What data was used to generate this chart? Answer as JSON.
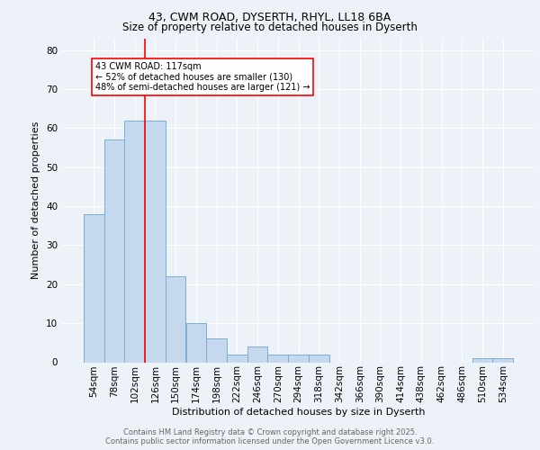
{
  "title_line1": "43, CWM ROAD, DYSERTH, RHYL, LL18 6BA",
  "title_line2": "Size of property relative to detached houses in Dyserth",
  "xlabel": "Distribution of detached houses by size in Dyserth",
  "ylabel": "Number of detached properties",
  "categories": [
    "54sqm",
    "78sqm",
    "102sqm",
    "126sqm",
    "150sqm",
    "174sqm",
    "198sqm",
    "222sqm",
    "246sqm",
    "270sqm",
    "294sqm",
    "318sqm",
    "342sqm",
    "366sqm",
    "390sqm",
    "414sqm",
    "438sqm",
    "462sqm",
    "486sqm",
    "510sqm",
    "534sqm"
  ],
  "values": [
    38,
    57,
    62,
    62,
    22,
    10,
    6,
    2,
    4,
    2,
    2,
    2,
    0,
    0,
    0,
    0,
    0,
    0,
    0,
    1,
    1
  ],
  "bar_color": "#c5d8ed",
  "bar_edge_color": "#7aaed4",
  "vline_color": "red",
  "vline_position": 2.5,
  "annotation_text": "43 CWM ROAD: 117sqm\n← 52% of detached houses are smaller (130)\n48% of semi-detached houses are larger (121) →",
  "annotation_box_color": "white",
  "annotation_box_edge_color": "red",
  "ylim": [
    0,
    83
  ],
  "yticks": [
    0,
    10,
    20,
    30,
    40,
    50,
    60,
    70,
    80
  ],
  "footer_line1": "Contains HM Land Registry data © Crown copyright and database right 2025.",
  "footer_line2": "Contains public sector information licensed under the Open Government Licence v3.0.",
  "bg_color": "#edf2f8",
  "plot_bg_color": "#edf2f8",
  "title_fontsize": 9,
  "subtitle_fontsize": 8.5,
  "xlabel_fontsize": 8,
  "ylabel_fontsize": 8,
  "tick_fontsize": 7.5,
  "annot_fontsize": 7
}
